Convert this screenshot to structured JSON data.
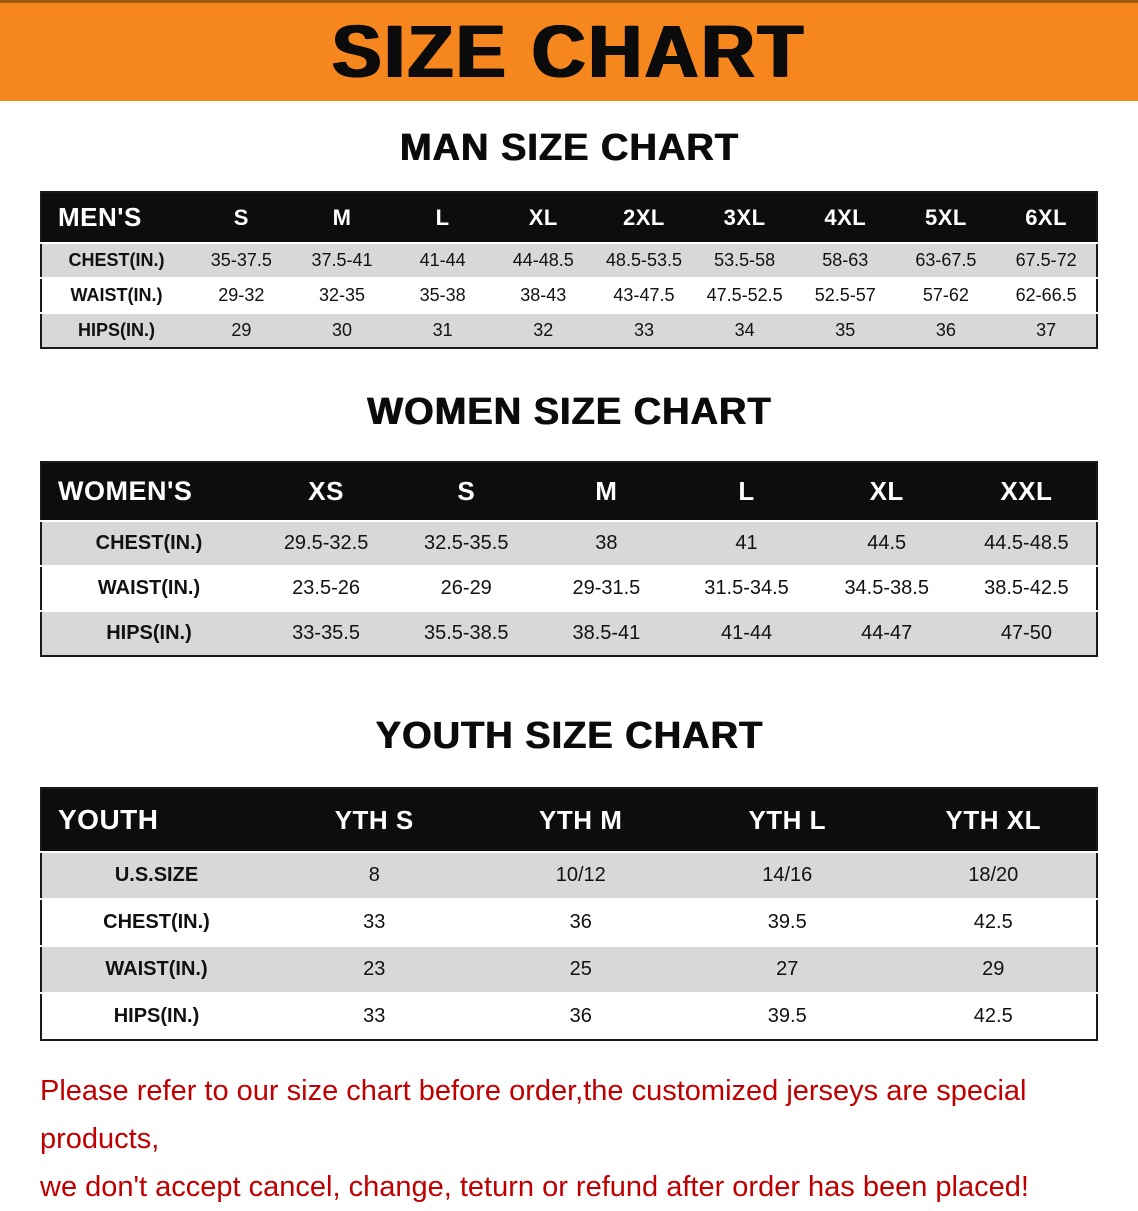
{
  "banner": {
    "title": "SIZE CHART"
  },
  "colors": {
    "banner_bg": "#f6871f",
    "header_row_bg": "#0d0d0d",
    "stripe_bg": "#d8d8d8",
    "disclaimer": "#c00000"
  },
  "men": {
    "heading": "MAN SIZE CHART",
    "table": {
      "header": [
        "MEN'S",
        "S",
        "M",
        "L",
        "XL",
        "2XL",
        "3XL",
        "4XL",
        "5XL",
        "6XL"
      ],
      "rows": [
        [
          "CHEST(IN.)",
          "35-37.5",
          "37.5-41",
          "41-44",
          "44-48.5",
          "48.5-53.5",
          "53.5-58",
          "58-63",
          "63-67.5",
          "67.5-72"
        ],
        [
          "WAIST(IN.)",
          "29-32",
          "32-35",
          "35-38",
          "38-43",
          "43-47.5",
          "47.5-52.5",
          "52.5-57",
          "57-62",
          "62-66.5"
        ],
        [
          "HIPS(IN.)",
          "29",
          "30",
          "31",
          "32",
          "33",
          "34",
          "35",
          "36",
          "37"
        ]
      ]
    }
  },
  "women": {
    "heading": "WOMEN SIZE CHART",
    "table": {
      "header": [
        "WOMEN'S",
        "XS",
        "S",
        "M",
        "L",
        "XL",
        "XXL"
      ],
      "rows": [
        [
          "CHEST(IN.)",
          "29.5-32.5",
          "32.5-35.5",
          "38",
          "41",
          "44.5",
          "44.5-48.5"
        ],
        [
          "WAIST(IN.)",
          "23.5-26",
          "26-29",
          "29-31.5",
          "31.5-34.5",
          "34.5-38.5",
          "38.5-42.5"
        ],
        [
          "HIPS(IN.)",
          "33-35.5",
          "35.5-38.5",
          "38.5-41",
          "41-44",
          "44-47",
          "47-50"
        ]
      ]
    }
  },
  "youth": {
    "heading": "YOUTH SIZE CHART",
    "table": {
      "header": [
        "YOUTH",
        "YTH S",
        "YTH M",
        "YTH L",
        "YTH XL"
      ],
      "rows": [
        [
          "U.S.SIZE",
          "8",
          "10/12",
          "14/16",
          "18/20"
        ],
        [
          "CHEST(IN.)",
          "33",
          "36",
          "39.5",
          "42.5"
        ],
        [
          "WAIST(IN.)",
          "23",
          "25",
          "27",
          "29"
        ],
        [
          "HIPS(IN.)",
          "33",
          "36",
          "39.5",
          "42.5"
        ]
      ]
    }
  },
  "disclaimer": {
    "line1": "Please refer to our size chart before order,the customized jerseys are special products,",
    "line2": "we don't accept cancel, change, teturn or refund after order has been placed!"
  }
}
